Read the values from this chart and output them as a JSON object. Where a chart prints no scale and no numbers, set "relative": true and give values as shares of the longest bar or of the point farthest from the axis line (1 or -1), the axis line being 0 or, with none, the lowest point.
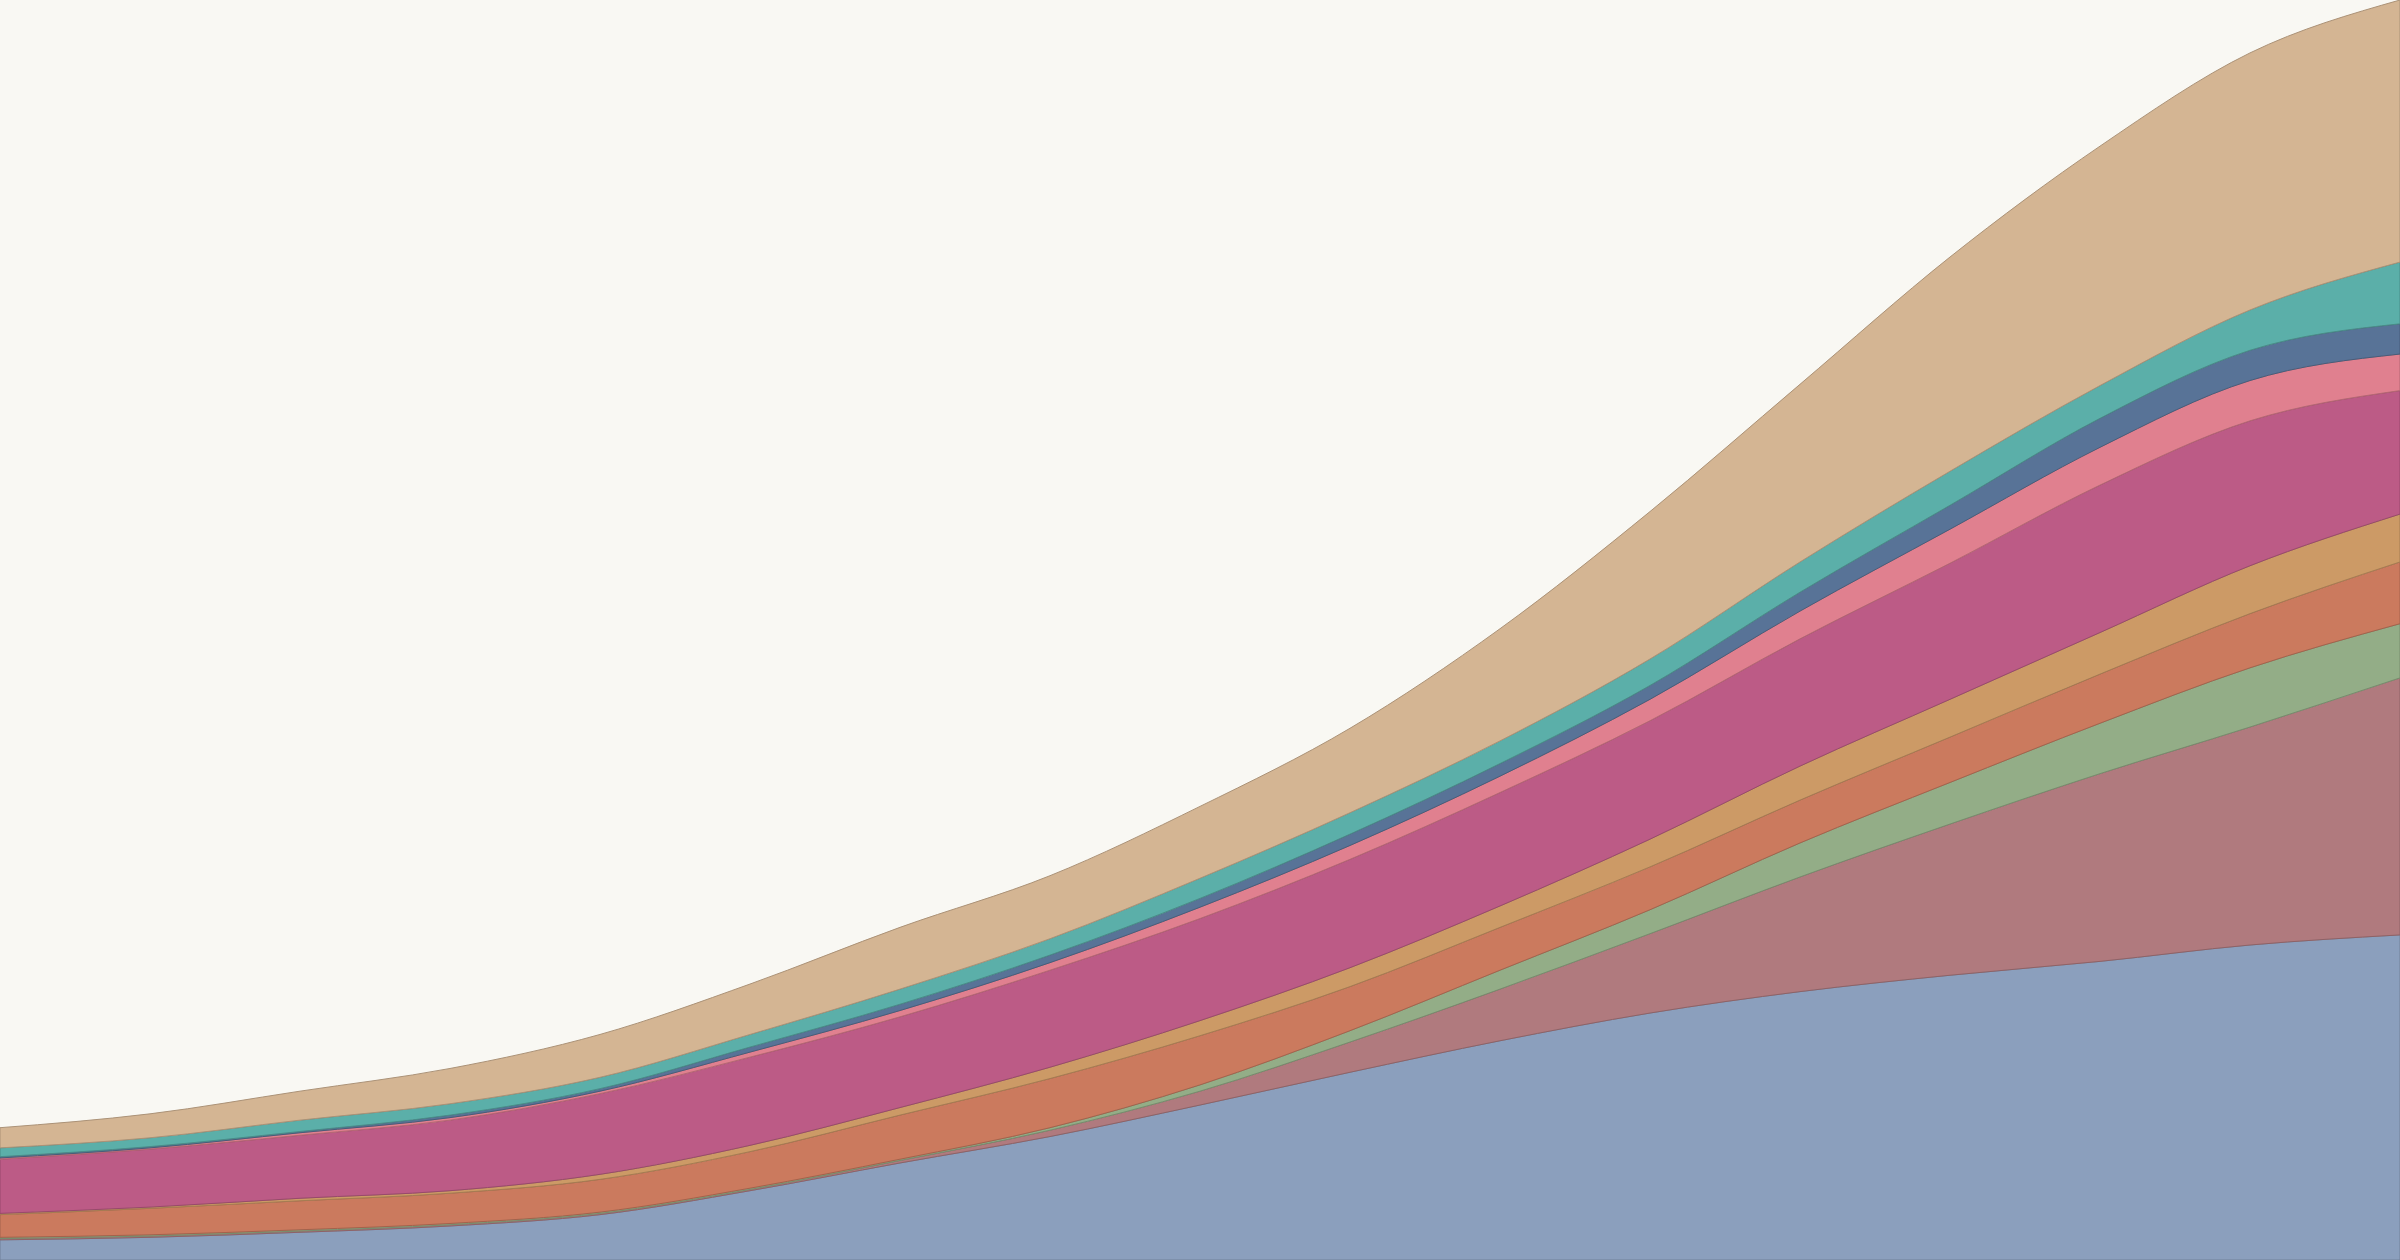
{
  "chart_data": {
    "type": "area",
    "stacked": true,
    "relative": true,
    "categories": [
      null,
      null,
      null,
      null,
      null,
      null,
      null,
      null,
      null,
      null,
      null,
      null,
      null,
      null,
      null,
      null,
      null
    ],
    "series": [
      {
        "color": "#8b9fbd",
        "values": [
          0.016,
          0.018,
          0.022,
          0.027,
          0.036,
          0.055,
          0.077,
          0.098,
          0.123,
          0.149,
          0.174,
          0.196,
          0.213,
          0.226,
          0.237,
          0.25,
          0.258
        ]
      },
      {
        "color": "#b07a7e",
        "values": [
          0.001,
          0.001,
          0.001,
          0.001,
          0.001,
          0.001,
          0.002,
          0.005,
          0.011,
          0.024,
          0.041,
          0.063,
          0.091,
          0.12,
          0.149,
          0.173,
          0.204
        ]
      },
      {
        "color": "#93ad87",
        "values": [
          0.001,
          0.001,
          0.001,
          0.001,
          0.001,
          0.001,
          0.001,
          0.002,
          0.005,
          0.009,
          0.015,
          0.019,
          0.027,
          0.033,
          0.04,
          0.047,
          0.043
        ]
      },
      {
        "color": "#cb7a5e",
        "values": [
          0.018,
          0.021,
          0.023,
          0.024,
          0.026,
          0.029,
          0.035,
          0.039,
          0.039,
          0.035,
          0.034,
          0.034,
          0.034,
          0.036,
          0.039,
          0.043,
          0.049
        ]
      },
      {
        "color": "#cc9a66",
        "values": [
          0.001,
          0.001,
          0.002,
          0.002,
          0.004,
          0.005,
          0.006,
          0.009,
          0.012,
          0.015,
          0.017,
          0.022,
          0.027,
          0.03,
          0.033,
          0.038,
          0.038
        ]
      },
      {
        "color": "#bc5b86",
        "values": [
          0.043,
          0.046,
          0.05,
          0.056,
          0.064,
          0.07,
          0.072,
          0.077,
          0.081,
          0.086,
          0.09,
          0.094,
          0.101,
          0.108,
          0.117,
          0.115,
          0.098
        ]
      },
      {
        "color": "#e0808f",
        "values": [
          0.001,
          0.001,
          0.002,
          0.002,
          0.002,
          0.004,
          0.005,
          0.006,
          0.009,
          0.011,
          0.013,
          0.017,
          0.022,
          0.027,
          0.03,
          0.032,
          0.029
        ]
      },
      {
        "color": "#587397",
        "values": [
          0.001,
          0.001,
          0.001,
          0.002,
          0.002,
          0.004,
          0.005,
          0.006,
          0.007,
          0.009,
          0.01,
          0.011,
          0.015,
          0.019,
          0.023,
          0.024,
          0.024
        ]
      },
      {
        "color": "#5bafa9",
        "values": [
          0.007,
          0.007,
          0.009,
          0.009,
          0.009,
          0.01,
          0.012,
          0.013,
          0.016,
          0.017,
          0.018,
          0.021,
          0.024,
          0.027,
          0.026,
          0.032,
          0.049
        ]
      },
      {
        "color": "#d4b593",
        "values": [
          0.016,
          0.019,
          0.023,
          0.028,
          0.034,
          0.04,
          0.049,
          0.05,
          0.057,
          0.067,
          0.089,
          0.117,
          0.141,
          0.17,
          0.19,
          0.204,
          0.208
        ]
      }
    ]
  }
}
